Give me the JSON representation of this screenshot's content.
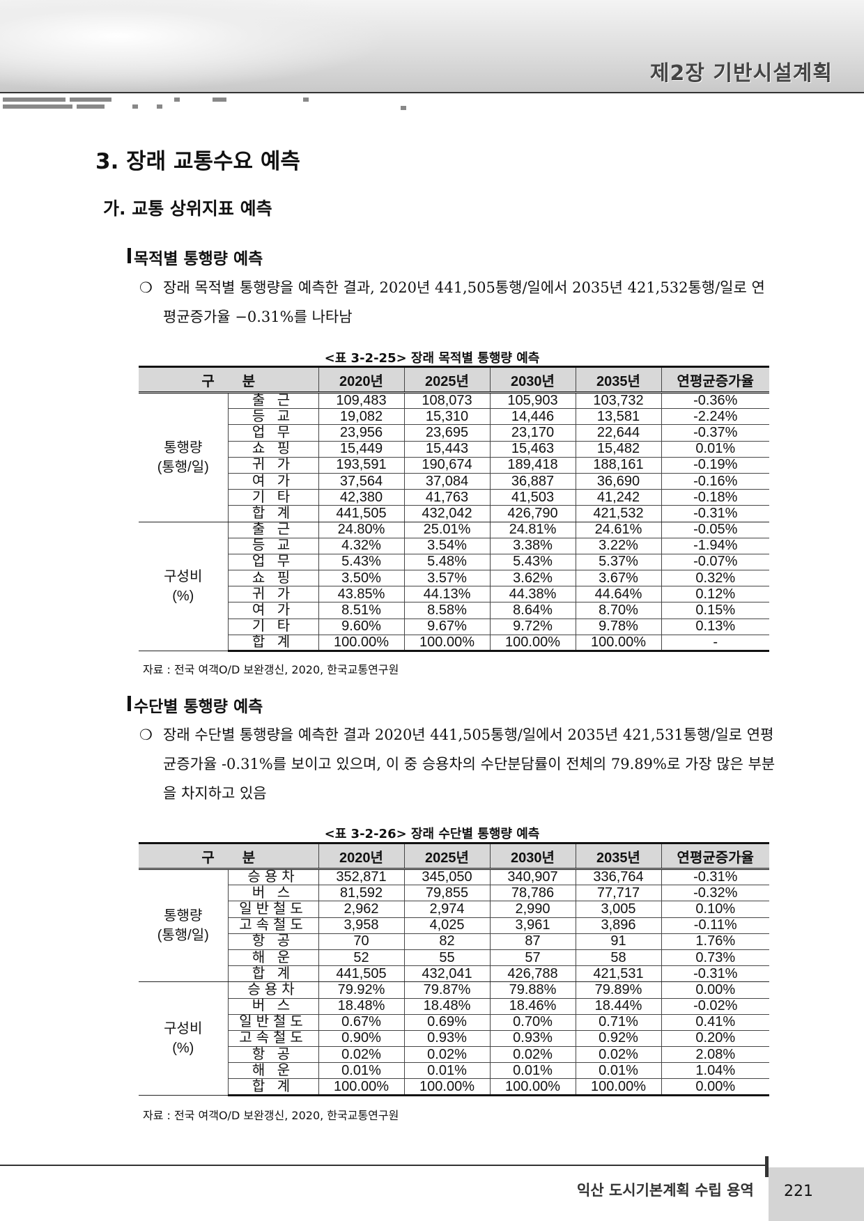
{
  "header": {
    "chapter": "제2장 기반시설계획"
  },
  "section": {
    "title": "3. 장래 교통수요 예측",
    "subtitle": "가. 교통 상위지표 예측"
  },
  "purpose": {
    "heading": "목적별 통행량 예측",
    "bullet": "❍",
    "text": "장래 목적별 통행량을 예측한 결과, 2020년 441,505통행/일에서 2035년 421,532통행/일로 연평균증가율 −0.31%를 나타남",
    "caption": "<표 3-2-25> 장래 목적별 통행량 예측",
    "columns": [
      "구　　분",
      "2020년",
      "2025년",
      "2030년",
      "2035년",
      "연평균증가율"
    ],
    "groups": [
      {
        "label": "통행량\n(통행/일)",
        "rows": [
          [
            "출 근",
            "109,483",
            "108,073",
            "105,903",
            "103,732",
            "-0.36%"
          ],
          [
            "등 교",
            "19,082",
            "15,310",
            "14,446",
            "13,581",
            "-2.24%"
          ],
          [
            "업 무",
            "23,956",
            "23,695",
            "23,170",
            "22,644",
            "-0.37%"
          ],
          [
            "쇼 핑",
            "15,449",
            "15,443",
            "15,463",
            "15,482",
            "0.01%"
          ],
          [
            "귀 가",
            "193,591",
            "190,674",
            "189,418",
            "188,161",
            "-0.19%"
          ],
          [
            "여 가",
            "37,564",
            "37,084",
            "36,887",
            "36,690",
            "-0.16%"
          ],
          [
            "기 타",
            "42,380",
            "41,763",
            "41,503",
            "41,242",
            "-0.18%"
          ],
          [
            "합 계",
            "441,505",
            "432,042",
            "426,790",
            "421,532",
            "-0.31%"
          ]
        ]
      },
      {
        "label": "구성비\n(%)",
        "rows": [
          [
            "출 근",
            "24.80%",
            "25.01%",
            "24.81%",
            "24.61%",
            "-0.05%"
          ],
          [
            "등 교",
            "4.32%",
            "3.54%",
            "3.38%",
            "3.22%",
            "-1.94%"
          ],
          [
            "업 무",
            "5.43%",
            "5.48%",
            "5.43%",
            "5.37%",
            "-0.07%"
          ],
          [
            "쇼 핑",
            "3.50%",
            "3.57%",
            "3.62%",
            "3.67%",
            "0.32%"
          ],
          [
            "귀 가",
            "43.85%",
            "44.13%",
            "44.38%",
            "44.64%",
            "0.12%"
          ],
          [
            "여 가",
            "8.51%",
            "8.58%",
            "8.64%",
            "8.70%",
            "0.15%"
          ],
          [
            "기 타",
            "9.60%",
            "9.67%",
            "9.72%",
            "9.78%",
            "0.13%"
          ],
          [
            "합 계",
            "100.00%",
            "100.00%",
            "100.00%",
            "100.00%",
            "-"
          ]
        ]
      }
    ],
    "source": "자료 : 전국 여객O/D 보완갱신, 2020, 한국교통연구원"
  },
  "mode": {
    "heading": "수단별 통행량 예측",
    "bullet": "❍",
    "text": "장래 수단별 통행량을 예측한 결과 2020년 441,505통행/일에서 2035년 421,531통행/일로 연평균증가율 -0.31%를 보이고 있으며, 이 중 승용차의 수단분담률이 전체의 79.89%로 가장 많은 부분을 차지하고 있음",
    "caption": "<표 3-2-26> 장래 수단별 통행량 예측",
    "columns": [
      "구　　분",
      "2020년",
      "2025년",
      "2030년",
      "2035년",
      "연평균증가율"
    ],
    "groups": [
      {
        "label": "통행량\n(통행/일)",
        "rows": [
          [
            "승용차",
            "352,871",
            "345,050",
            "340,907",
            "336,764",
            "-0.31%"
          ],
          [
            "버 스",
            "81,592",
            "79,855",
            "78,786",
            "77,717",
            "-0.32%"
          ],
          [
            "일반철도",
            "2,962",
            "2,974",
            "2,990",
            "3,005",
            "0.10%"
          ],
          [
            "고속철도",
            "3,958",
            "4,025",
            "3,961",
            "3,896",
            "-0.11%"
          ],
          [
            "항 공",
            "70",
            "82",
            "87",
            "91",
            "1.76%"
          ],
          [
            "해 운",
            "52",
            "55",
            "57",
            "58",
            "0.73%"
          ],
          [
            "합 계",
            "441,505",
            "432,041",
            "426,788",
            "421,531",
            "-0.31%"
          ]
        ]
      },
      {
        "label": "구성비\n(%)",
        "rows": [
          [
            "승용차",
            "79.92%",
            "79.87%",
            "79.88%",
            "79.89%",
            "0.00%"
          ],
          [
            "버 스",
            "18.48%",
            "18.48%",
            "18.46%",
            "18.44%",
            "-0.02%"
          ],
          [
            "일반철도",
            "0.67%",
            "0.69%",
            "0.70%",
            "0.71%",
            "0.41%"
          ],
          [
            "고속철도",
            "0.90%",
            "0.93%",
            "0.93%",
            "0.92%",
            "0.20%"
          ],
          [
            "항 공",
            "0.02%",
            "0.02%",
            "0.02%",
            "0.02%",
            "2.08%"
          ],
          [
            "해 운",
            "0.01%",
            "0.01%",
            "0.01%",
            "0.01%",
            "1.04%"
          ],
          [
            "합 계",
            "100.00%",
            "100.00%",
            "100.00%",
            "100.00%",
            "0.00%"
          ]
        ]
      }
    ],
    "source": "자료 : 전국 여객O/D 보완갱신, 2020, 한국교통연구원"
  },
  "footer": {
    "title": "익산 도시기본계획 수립 용역",
    "page": "221"
  }
}
